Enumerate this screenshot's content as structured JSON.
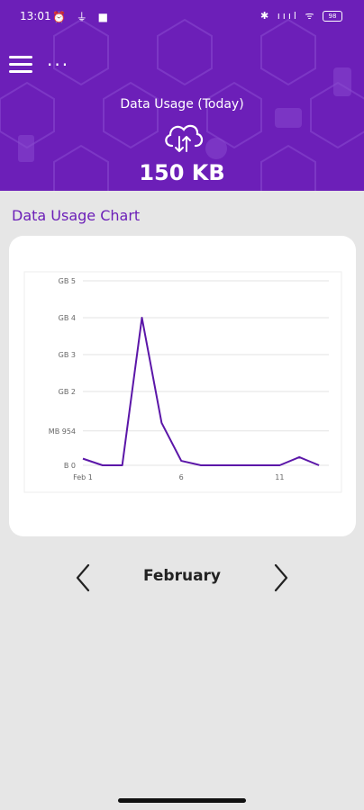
{
  "status_bar": {
    "time": "13:01",
    "left_icons": "⏰ ⏚ ■",
    "right_icons": "✱ ıııl ᯤ",
    "battery": "98"
  },
  "header": {
    "usage_label": "Data Usage (Today)",
    "usage_value": "150 KB"
  },
  "section_title": "Data Usage Chart",
  "chart_data": {
    "type": "line",
    "title": "",
    "xlabel": "",
    "ylabel": "",
    "x": [
      1,
      2,
      3,
      4,
      5,
      6,
      7,
      8,
      9,
      10,
      11,
      12,
      13
    ],
    "series": [
      {
        "values_gb": [
          0.18,
          0.0,
          0.0,
          4.0,
          1.15,
          0.12,
          0.0,
          0.0,
          0.0,
          0.0,
          0.0,
          0.22,
          0.0
        ]
      }
    ],
    "x_ticks": [
      {
        "x": 1,
        "label": "Feb 1"
      },
      {
        "x": 6,
        "label": "6"
      },
      {
        "x": 11,
        "label": "11"
      }
    ],
    "y_ticks": [
      {
        "y": 0,
        "label": "B 0"
      },
      {
        "y": 0.9316,
        "label": "MB 954"
      },
      {
        "y": 2,
        "label": "GB 2"
      },
      {
        "y": 3,
        "label": "GB 3"
      },
      {
        "y": 4,
        "label": "GB 4"
      },
      {
        "y": 5,
        "label": "GB 5"
      }
    ],
    "ylim": [
      0,
      5
    ],
    "xlim": [
      1,
      13.5
    ],
    "grid": true,
    "line_color": "#5b16a8"
  },
  "month_nav": {
    "month": "February",
    "prev_icon": "chevron-left-icon",
    "next_icon": "chevron-right-icon"
  }
}
